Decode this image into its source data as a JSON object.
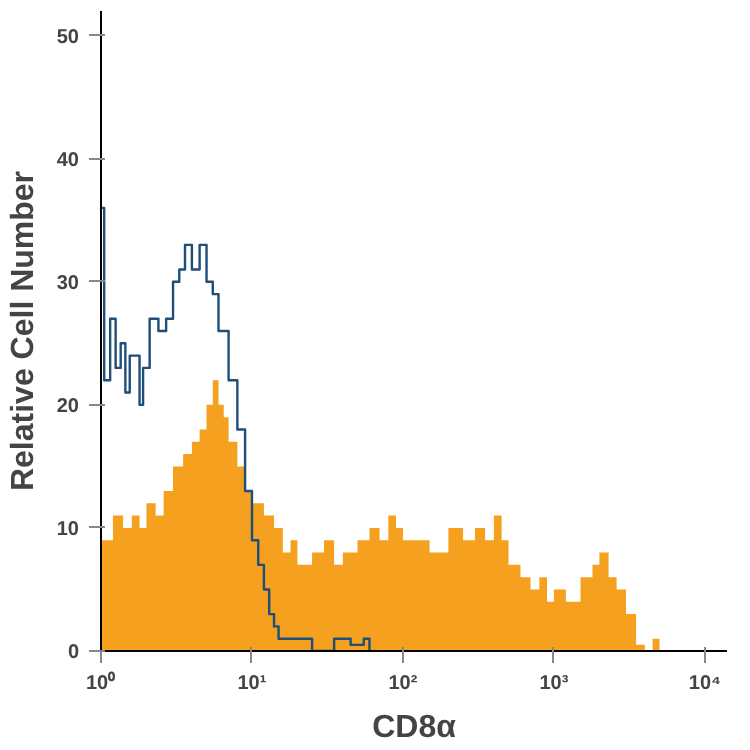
{
  "chart_data": {
    "type": "area",
    "xlabel": "CD8α",
    "ylabel": "Relative Cell Number",
    "log": "x",
    "grid": false,
    "xlim": [
      1,
      14000
    ],
    "xticks": [
      {
        "value": 1,
        "label": "10⁰"
      },
      {
        "value": 10,
        "label": "10¹"
      },
      {
        "value": 100,
        "label": "10²"
      },
      {
        "value": 1000,
        "label": "10³"
      },
      {
        "value": 10000,
        "label": "10⁴"
      }
    ],
    "ylim": [
      0,
      52
    ],
    "yticks": [
      0,
      10,
      20,
      30,
      40,
      50
    ],
    "series": [
      {
        "color": "#f5a01f",
        "x": [
          1,
          1.2,
          1.4,
          1.6,
          1.8,
          2,
          2.3,
          2.6,
          3,
          3.5,
          4,
          4.5,
          5,
          5.5,
          6,
          6.5,
          7,
          8,
          9,
          10,
          12,
          14,
          16,
          18,
          20,
          25,
          30,
          35,
          40,
          50,
          60,
          70,
          80,
          90,
          100,
          120,
          150,
          200,
          250,
          300,
          350,
          400,
          450,
          500,
          600,
          700,
          800,
          900,
          1000,
          1200,
          1500,
          1800,
          2000,
          2300,
          2600,
          3000,
          3500,
          4000,
          4500,
          5000,
          14000
        ],
        "values": [
          9,
          11,
          10,
          11,
          10,
          12,
          11,
          13,
          15,
          16,
          17,
          18,
          20,
          22,
          20,
          19,
          17,
          15,
          13,
          12,
          11,
          10,
          8,
          9,
          7,
          8,
          9,
          7,
          8,
          9,
          10,
          9,
          11,
          10,
          9,
          9,
          8,
          10,
          9,
          10,
          9,
          11,
          9,
          7,
          6,
          5,
          6,
          4,
          5,
          4,
          6,
          7,
          8,
          6,
          5,
          3,
          0.5,
          0,
          1,
          0,
          0
        ]
      },
      {
        "type": "step",
        "color": "#1f4e79",
        "x": [
          1,
          1.05,
          1.15,
          1.25,
          1.35,
          1.45,
          1.55,
          1.7,
          1.8,
          1.9,
          2.1,
          2.4,
          2.7,
          3,
          3.3,
          3.6,
          4,
          4.5,
          5,
          5.5,
          6,
          7,
          8,
          9,
          10,
          11,
          12,
          13,
          14,
          15,
          20,
          25,
          35,
          45,
          55,
          60
        ],
        "values": [
          36,
          22,
          27,
          23,
          25,
          21,
          24,
          24,
          20,
          23,
          27,
          26,
          27,
          30,
          31,
          33,
          31,
          33,
          30,
          29,
          26,
          22,
          18,
          13,
          9,
          7,
          5,
          3,
          2,
          1,
          1,
          0,
          1,
          0.5,
          1,
          0
        ]
      }
    ]
  }
}
